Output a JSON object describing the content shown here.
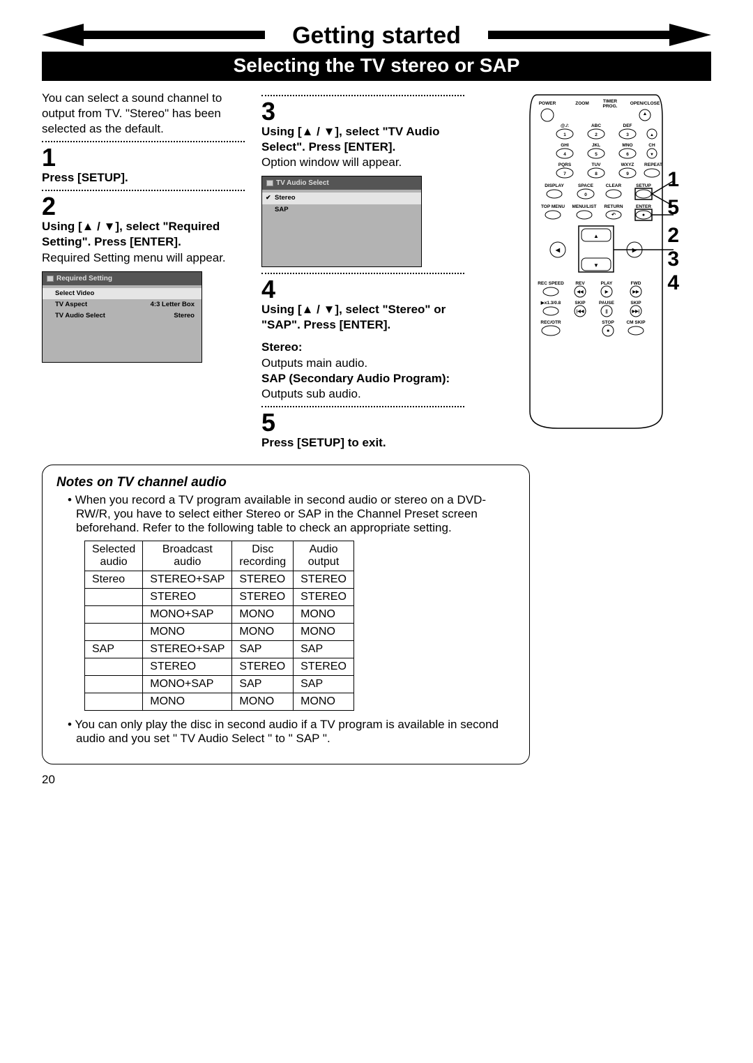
{
  "chapter": "Getting started",
  "section": "Selecting the TV stereo or SAP",
  "intro": "You can select a sound channel to output from TV. \"Stereo\" has been selected as the default.",
  "steps": {
    "s1": {
      "num": "1",
      "bold": "Press [SETUP]."
    },
    "s2": {
      "num": "2",
      "bold": "Using [▲ / ▼], select \"Required Setting\". Press [ENTER].",
      "body": "Required Setting menu will appear."
    },
    "s3": {
      "num": "3",
      "bold": "Using [▲ / ▼], select \"TV Audio Select\". Press [ENTER].",
      "body": "Option window will appear."
    },
    "s4": {
      "num": "4",
      "bold": "Using [▲ / ▼], select \"Stereo\" or \"SAP\". Press [ENTER].",
      "opt1_label": "Stereo:",
      "opt1_body": "Outputs main audio.",
      "opt2_label": "SAP (Secondary Audio Program):",
      "opt2_body": "Outputs sub audio."
    },
    "s5": {
      "num": "5",
      "bold": "Press [SETUP] to exit."
    }
  },
  "osd1": {
    "title": "Required Setting",
    "rows": [
      {
        "label": "Select Video",
        "val": ""
      },
      {
        "label": "TV Aspect",
        "val": "4:3 Letter Box"
      },
      {
        "label": "TV Audio Select",
        "val": "Stereo"
      }
    ]
  },
  "osd2": {
    "title": "TV Audio Select",
    "rows": [
      {
        "label": "Stereo",
        "sel": true
      },
      {
        "label": "SAP"
      }
    ]
  },
  "notes": {
    "title": "Notes on TV channel audio",
    "bullet1": "When you record a TV program available in second audio or stereo on a DVD-RW/R, you have to select either Stereo or SAP in the Channel Preset screen beforehand. Refer to the following table to check an appropriate setting.",
    "bullet2": "You can only play the disc in second audio if a TV program is available in second audio and you set \" TV Audio Select \" to \" SAP \"."
  },
  "table": {
    "headers": [
      "Selected audio",
      "Broadcast audio",
      "Disc recording",
      "Audio output"
    ],
    "rows": [
      [
        "Stereo",
        "STEREO+SAP",
        "STEREO",
        "STEREO"
      ],
      [
        "",
        "STEREO",
        "STEREO",
        "STEREO"
      ],
      [
        "",
        "MONO+SAP",
        "MONO",
        "MONO"
      ],
      [
        "",
        "MONO",
        "MONO",
        "MONO"
      ],
      [
        "SAP",
        "STEREO+SAP",
        "SAP",
        "SAP"
      ],
      [
        "",
        "STEREO",
        "STEREO",
        "STEREO"
      ],
      [
        "",
        "MONO+SAP",
        "SAP",
        "SAP"
      ],
      [
        "",
        "MONO",
        "MONO",
        "MONO"
      ]
    ]
  },
  "callouts": [
    "1",
    "5",
    "2",
    "3",
    "4"
  ],
  "pagenum": "20",
  "remote": {
    "row_labels": [
      [
        "POWER",
        "",
        "ZOOM",
        "TIMER PROG.",
        "OPEN/CLOSE"
      ],
      [
        "",
        "@./:",
        "ABC",
        "DEF",
        ""
      ],
      [
        "",
        "GHI",
        "JKL",
        "MNO",
        "CH"
      ],
      [
        "",
        "PQRS",
        "TUV",
        "WXYZ",
        "REPEAT"
      ],
      [
        "DISPLAY",
        "SPACE",
        "CLEAR",
        "SETUP"
      ],
      [
        "TOP MENU",
        "MENU/LIST",
        "RETURN",
        "ENTER"
      ]
    ],
    "nums": [
      "1",
      "2",
      "3",
      "4",
      "5",
      "6",
      "7",
      "8",
      "9",
      "0"
    ],
    "nav": [
      "▲",
      "▼",
      "◀",
      "▶"
    ],
    "bottom": [
      [
        "REC SPEED",
        "REV",
        "PLAY",
        "FWD"
      ],
      [
        "▶x1.3/0.8",
        "SKIP",
        "PAUSE",
        "SKIP"
      ],
      [
        "REC/OTR",
        "",
        "STOP",
        "CM SKIP"
      ]
    ]
  }
}
